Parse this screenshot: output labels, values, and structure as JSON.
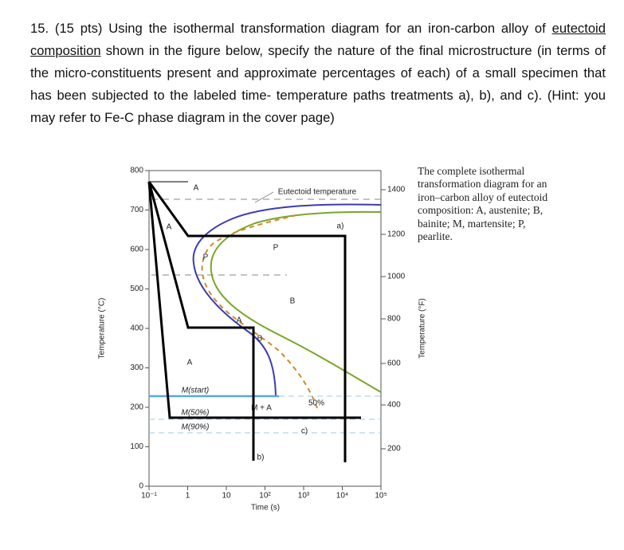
{
  "question": {
    "text_before": "15. (15 pts) Using the isothermal transformation diagram for an iron-carbon alloy of",
    "underlined": "eutectoid composition",
    "text_after": "shown in the figure below, specify the nature of the final microstructure (in terms of the micro-constituents present and approximate percentages of each) of a small specimen that has been subjected to the labeled time- temperature paths treatments a), b), and c). (Hint: you may refer to Fe-C phase diagram in the cover page)"
  },
  "figure": {
    "y_axis_title": "Temperature (°C)",
    "y_ticks": [
      "800",
      "700",
      "600",
      "500",
      "400",
      "300",
      "200",
      "100",
      "0"
    ],
    "y2_axis_title": "Temperature (°F)",
    "y2_ticks": [
      "1400",
      "1200",
      "1000",
      "800",
      "600",
      "400",
      "200"
    ],
    "x_axis_title": "Time (s)",
    "x_ticks": [
      "10⁻¹",
      "1",
      "10",
      "10²",
      "10³",
      "10⁴",
      "10⁵"
    ],
    "labels": [
      "A",
      "A",
      "A",
      "A",
      "Eutectoid temperature",
      "P",
      "P",
      "B",
      "B",
      "M(start)",
      "M(50%)",
      "M(90%)",
      "M + A",
      "50%",
      "a)",
      "b)",
      "c)"
    ],
    "caption": "The complete isothermal transformation diagram for an iron–carbon alloy of eutectoid composition: A, austenite; B, bainite; M, martensite; P, pearlite."
  }
}
